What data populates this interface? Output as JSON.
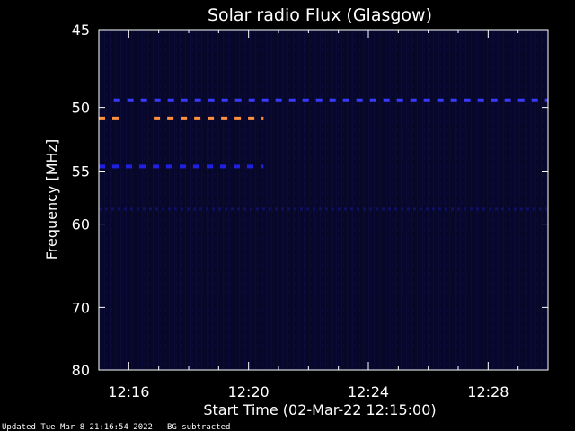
{
  "chart_data": {
    "type": "heatmap",
    "title": "Solar radio Flux (Glasgow)",
    "xlabel": "Start Time (02-Mar-22 12:15:00)",
    "ylabel": "Frequency [MHz]",
    "x_start": "12:15:00",
    "x_end": "12:30:00",
    "x_ticks": [
      {
        "minute": 16,
        "label": "12:16"
      },
      {
        "minute": 20,
        "label": "12:20"
      },
      {
        "minute": 24,
        "label": "12:24"
      },
      {
        "minute": 28,
        "label": "12:28"
      }
    ],
    "y_axis_scale": "reciprocal",
    "y_range_mhz": [
      45,
      80
    ],
    "y_ticks": [
      {
        "value": 45,
        "label": "45"
      },
      {
        "value": 50,
        "label": "50"
      },
      {
        "value": 55,
        "label": "55"
      },
      {
        "value": 60,
        "label": "60"
      },
      {
        "value": 70,
        "label": "70"
      },
      {
        "value": 80,
        "label": "80"
      }
    ],
    "background_color": "#07072a",
    "features": [
      {
        "freq_mhz": 49.5,
        "time_start": "12:15:30",
        "time_end": "12:30:00",
        "color": "#3a3aff",
        "pattern": "dashed"
      },
      {
        "freq_mhz": 50.8,
        "time_start": "12:15:00",
        "time_end": "12:15:40",
        "color": "#ff9040",
        "pattern": "dashed"
      },
      {
        "freq_mhz": 50.8,
        "time_start": "12:16:50",
        "time_end": "12:20:30",
        "color": "#ff9040",
        "pattern": "dashed"
      },
      {
        "freq_mhz": 54.6,
        "time_start": "12:15:00",
        "time_end": "12:20:30",
        "color": "#2020e0",
        "pattern": "dashed"
      },
      {
        "freq_mhz": 58.5,
        "time_start": "12:15:00",
        "time_end": "12:30:00",
        "color": "#101060",
        "pattern": "faint"
      }
    ]
  },
  "footer": {
    "updated": "Updated Tue Mar  8 21:16:54 2022",
    "bg_note": "BG subtracted"
  }
}
